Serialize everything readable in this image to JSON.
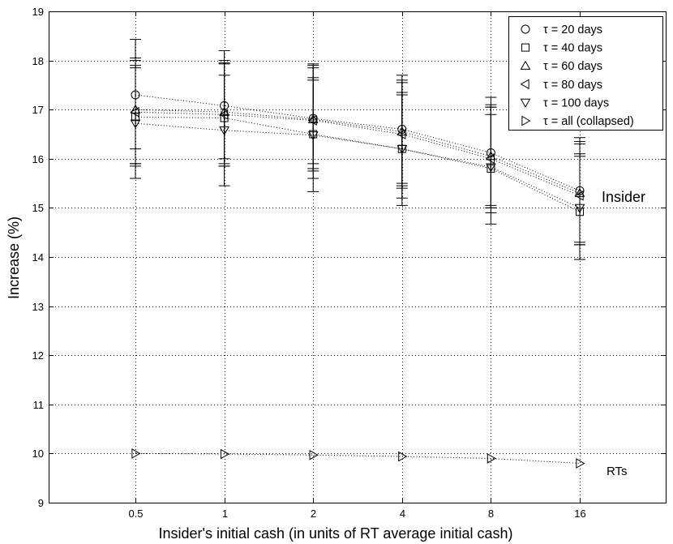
{
  "chart_data": {
    "type": "line",
    "xlabel": "Insider's initial cash (in units of RT average initial cash)",
    "ylabel": "Increase (%)",
    "categories": [
      "0.5",
      "1",
      "2",
      "4",
      "8",
      "16"
    ],
    "yticks": [
      "9",
      "10",
      "11",
      "12",
      "13",
      "14",
      "15",
      "16",
      "17",
      "18",
      "19"
    ],
    "ylim": [
      9,
      19
    ],
    "grid": true,
    "legend_position": "top-right",
    "series": [
      {
        "name": "τ = 20 days",
        "marker": "circle",
        "values": [
          17.3,
          17.08,
          16.82,
          16.6,
          16.12,
          15.35
        ],
        "err_low": [
          16.2,
          16.0,
          15.9,
          15.5,
          15.0,
          14.3
        ],
        "err_high": [
          18.43,
          18.2,
          17.93,
          17.7,
          17.25,
          16.43
        ]
      },
      {
        "name": "τ = 40 days",
        "marker": "square",
        "values": [
          16.85,
          16.83,
          16.5,
          16.2,
          15.8,
          14.92
        ],
        "err_low": [
          15.85,
          15.9,
          15.6,
          15.2,
          14.9,
          13.95
        ],
        "err_high": [
          17.9,
          17.93,
          17.6,
          17.3,
          16.9,
          16.1
        ]
      },
      {
        "name": "τ = 60 days",
        "marker": "triangle-up",
        "values": [
          17.0,
          16.95,
          16.8,
          16.55,
          16.05,
          15.3
        ],
        "err_low": [
          15.9,
          15.85,
          15.8,
          15.45,
          15.05,
          14.25
        ],
        "err_high": [
          18.05,
          18.0,
          17.9,
          17.6,
          17.1,
          16.35
        ]
      },
      {
        "name": "τ = 80 days",
        "marker": "triangle-left",
        "values": [
          16.95,
          16.9,
          16.78,
          16.5,
          16.0,
          15.25
        ],
        "err_low": [
          15.9,
          15.85,
          15.75,
          15.4,
          15.0,
          14.25
        ],
        "err_high": [
          18.0,
          17.95,
          17.85,
          17.55,
          17.05,
          16.3
        ]
      },
      {
        "name": "τ = 100 days",
        "marker": "triangle-down",
        "values": [
          16.72,
          16.58,
          16.48,
          16.2,
          15.83,
          15.0
        ],
        "err_low": [
          15.6,
          15.45,
          15.33,
          15.05,
          14.67,
          13.95
        ],
        "err_high": [
          17.85,
          17.7,
          17.65,
          17.35,
          17.05,
          16.05
        ]
      },
      {
        "name": "τ = all (collapsed)",
        "marker": "triangle-right",
        "values": [
          10.0,
          9.99,
          9.97,
          9.94,
          9.9,
          9.8
        ]
      }
    ],
    "annotations": [
      {
        "text": "Insider",
        "x": "16",
        "y": 15.25
      },
      {
        "text": "RTs",
        "x": "16",
        "y": 9.6
      }
    ]
  }
}
